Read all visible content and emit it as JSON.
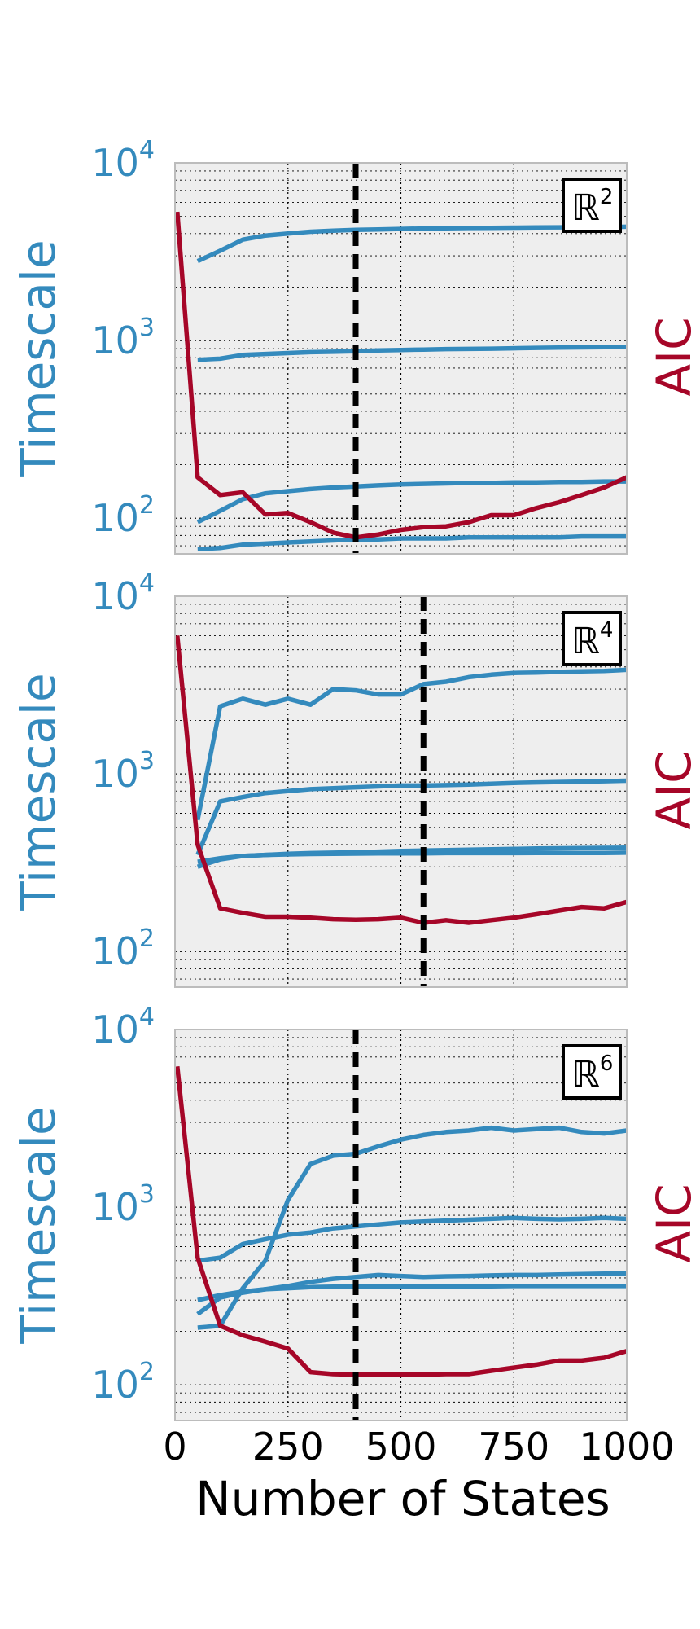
{
  "figure": {
    "xlabel": "Number of States",
    "x_ticks": [
      "0",
      "250",
      "500",
      "750",
      "1000"
    ]
  },
  "colors": {
    "timescale": "#348abd",
    "aic": "#a60628",
    "panel_bg": "#eeeeee",
    "grid": "#000000",
    "vline": "#000000"
  },
  "chart_data": [
    {
      "type": "line",
      "panel_label": "ℝ²",
      "label_base": "ℝ",
      "label_exp": "2",
      "ylabel": "Timescale",
      "right_label": "AIC",
      "yscale": "log",
      "ylim": [
        63,
        10000
      ],
      "y_ticks": [
        {
          "base": "10",
          "exp": "2",
          "value": 100
        },
        {
          "base": "10",
          "exp": "3",
          "value": 1000
        },
        {
          "base": "10",
          "exp": "4",
          "value": 10000
        }
      ],
      "xlim": [
        0,
        1000
      ],
      "grid": true,
      "vline_x": 400,
      "timescale_series": [
        {
          "x": [
            50,
            100,
            150,
            200,
            250,
            300,
            350,
            400,
            450,
            500,
            550,
            600,
            650,
            700,
            750,
            800,
            850,
            900,
            950,
            1000
          ],
          "y": [
            2800,
            3200,
            3700,
            3900,
            4000,
            4100,
            4150,
            4200,
            4220,
            4250,
            4270,
            4290,
            4300,
            4310,
            4320,
            4330,
            4340,
            4350,
            4360,
            4370
          ]
        },
        {
          "x": [
            50,
            100,
            150,
            200,
            250,
            300,
            350,
            400,
            450,
            500,
            550,
            600,
            650,
            700,
            750,
            800,
            850,
            900,
            950,
            1000
          ],
          "y": [
            780,
            790,
            830,
            840,
            850,
            860,
            865,
            870,
            880,
            885,
            890,
            895,
            897,
            900,
            905,
            910,
            912,
            915,
            918,
            920
          ]
        },
        {
          "x": [
            50,
            100,
            150,
            200,
            250,
            300,
            350,
            400,
            450,
            500,
            550,
            600,
            650,
            700,
            750,
            800,
            850,
            900,
            950,
            1000
          ],
          "y": [
            95,
            110,
            128,
            138,
            142,
            146,
            149,
            151,
            153,
            155,
            156,
            157,
            158,
            158,
            159,
            159,
            160,
            160,
            161,
            161
          ]
        },
        {
          "x": [
            50,
            100,
            150,
            200,
            250,
            300,
            350,
            400,
            450,
            500,
            550,
            600,
            650,
            700,
            750,
            800,
            850,
            900,
            950,
            1000
          ],
          "y": [
            67,
            68,
            71,
            72,
            73,
            74,
            75,
            76,
            76,
            77,
            77,
            77,
            78,
            78,
            78,
            78,
            78,
            79,
            79,
            79
          ]
        }
      ],
      "aic_series": {
        "x": [
          5,
          50,
          100,
          150,
          200,
          250,
          300,
          350,
          400,
          450,
          500,
          550,
          600,
          650,
          700,
          750,
          800,
          850,
          900,
          950,
          1000
        ],
        "y": [
          5300,
          170,
          135,
          140,
          105,
          107,
          95,
          83,
          78,
          81,
          86,
          89,
          90,
          95,
          104,
          104,
          114,
          123,
          135,
          149,
          170
        ]
      }
    },
    {
      "type": "line",
      "panel_label": "ℝ⁴",
      "label_base": "ℝ",
      "label_exp": "4",
      "ylabel": "Timescale",
      "right_label": "AIC",
      "yscale": "log",
      "ylim": [
        63,
        10000
      ],
      "y_ticks": [
        {
          "base": "10",
          "exp": "2",
          "value": 100
        },
        {
          "base": "10",
          "exp": "3",
          "value": 1000
        },
        {
          "base": "10",
          "exp": "4",
          "value": 10000
        }
      ],
      "xlim": [
        0,
        1000
      ],
      "grid": true,
      "vline_x": 550,
      "timescale_series": [
        {
          "x": [
            50,
            100,
            150,
            200,
            250,
            300,
            350,
            400,
            450,
            500,
            550,
            600,
            650,
            700,
            750,
            800,
            850,
            900,
            950,
            1000
          ],
          "y": [
            550,
            2400,
            2650,
            2450,
            2650,
            2450,
            3000,
            2950,
            2800,
            2800,
            3200,
            3300,
            3500,
            3620,
            3700,
            3720,
            3750,
            3780,
            3800,
            3850
          ]
        },
        {
          "x": [
            50,
            100,
            150,
            200,
            250,
            300,
            350,
            400,
            450,
            500,
            550,
            600,
            650,
            700,
            750,
            800,
            850,
            900,
            950,
            1000
          ],
          "y": [
            350,
            700,
            740,
            780,
            800,
            820,
            830,
            840,
            850,
            860,
            860,
            865,
            870,
            880,
            890,
            895,
            900,
            905,
            910,
            915
          ]
        },
        {
          "x": [
            50,
            100,
            150,
            200,
            250,
            300,
            350,
            400,
            450,
            500,
            550,
            600,
            650,
            700,
            750,
            800,
            850,
            900,
            950,
            1000
          ],
          "y": [
            300,
            330,
            345,
            350,
            355,
            358,
            360,
            362,
            365,
            368,
            370,
            372,
            374,
            376,
            378,
            380,
            381,
            382,
            383,
            384
          ]
        },
        {
          "x": [
            50,
            100,
            150,
            200,
            250,
            300,
            350,
            400,
            450,
            500,
            550,
            600,
            650,
            700,
            750,
            800,
            850,
            900,
            950,
            1000
          ],
          "y": [
            320,
            335,
            345,
            350,
            352,
            354,
            355,
            356,
            357,
            357,
            357,
            358,
            358,
            358,
            358,
            359,
            359,
            359,
            359,
            360
          ]
        }
      ],
      "aic_series": {
        "x": [
          5,
          50,
          100,
          150,
          200,
          250,
          300,
          350,
          400,
          450,
          500,
          550,
          600,
          650,
          700,
          750,
          800,
          850,
          900,
          950,
          1000
        ],
        "y": [
          6000,
          400,
          175,
          165,
          157,
          157,
          155,
          152,
          151,
          152,
          155,
          145,
          150,
          145,
          150,
          155,
          162,
          170,
          178,
          175,
          190
        ]
      }
    },
    {
      "type": "line",
      "panel_label": "ℝ⁶",
      "label_base": "ℝ",
      "label_exp": "6",
      "ylabel": "Timescale",
      "right_label": "AIC",
      "yscale": "log",
      "ylim": [
        63,
        10000
      ],
      "y_ticks": [
        {
          "base": "10",
          "exp": "2",
          "value": 100
        },
        {
          "base": "10",
          "exp": "3",
          "value": 1000
        },
        {
          "base": "10",
          "exp": "4",
          "value": 10000
        }
      ],
      "xlim": [
        0,
        1000
      ],
      "grid": true,
      "vline_x": 400,
      "timescale_series": [
        {
          "x": [
            50,
            100,
            150,
            200,
            250,
            300,
            350,
            400,
            450,
            500,
            550,
            600,
            650,
            700,
            750,
            800,
            850,
            900,
            950,
            1000
          ],
          "y": [
            210,
            215,
            350,
            500,
            1100,
            1750,
            1950,
            2000,
            2200,
            2400,
            2550,
            2650,
            2700,
            2800,
            2700,
            2750,
            2800,
            2650,
            2600,
            2700
          ]
        },
        {
          "x": [
            50,
            100,
            150,
            200,
            250,
            300,
            350,
            400,
            450,
            500,
            550,
            600,
            650,
            700,
            750,
            800,
            850,
            900,
            950,
            1000
          ],
          "y": [
            500,
            520,
            620,
            660,
            700,
            720,
            760,
            780,
            800,
            820,
            830,
            840,
            850,
            860,
            870,
            860,
            855,
            860,
            870,
            860
          ]
        },
        {
          "x": [
            50,
            100,
            150,
            200,
            250,
            300,
            350,
            400,
            450,
            500,
            550,
            600,
            650,
            700,
            750,
            800,
            850,
            900,
            950,
            1000
          ],
          "y": [
            250,
            310,
            330,
            345,
            360,
            380,
            395,
            405,
            415,
            410,
            405,
            408,
            410,
            413,
            415,
            415,
            418,
            420,
            422,
            425
          ]
        },
        {
          "x": [
            50,
            100,
            150,
            200,
            250,
            300,
            350,
            400,
            450,
            500,
            550,
            600,
            650,
            700,
            750,
            800,
            850,
            900,
            950,
            1000
          ],
          "y": [
            300,
            320,
            335,
            345,
            350,
            355,
            357,
            358,
            358,
            358,
            359,
            359,
            359,
            359,
            360,
            360,
            360,
            360,
            360,
            360
          ]
        }
      ],
      "aic_series": {
        "x": [
          5,
          50,
          100,
          150,
          200,
          250,
          300,
          350,
          400,
          450,
          500,
          550,
          600,
          650,
          700,
          750,
          800,
          850,
          900,
          950,
          1000
        ],
        "y": [
          6200,
          520,
          215,
          190,
          175,
          160,
          118,
          115,
          114,
          114,
          114,
          114,
          115,
          115,
          120,
          125,
          130,
          137,
          137,
          142,
          155
        ]
      }
    }
  ]
}
